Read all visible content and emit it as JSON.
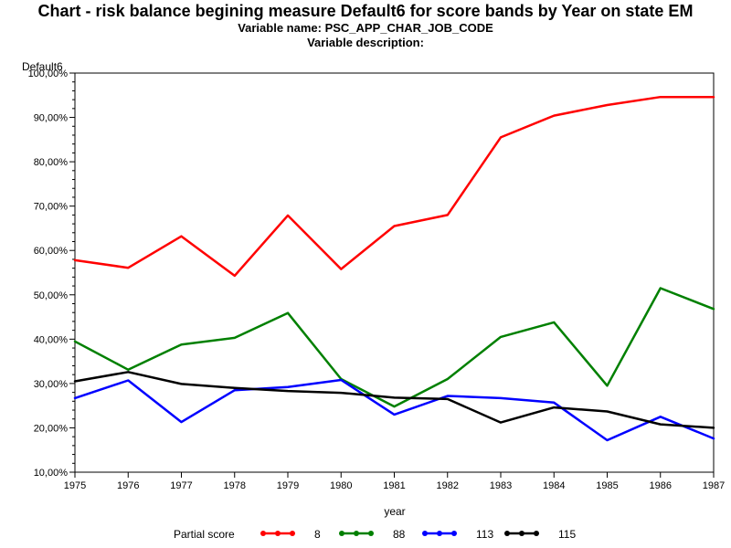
{
  "header": {
    "title": "Chart - risk balance begining measure Default6 for score bands by Year on state EM",
    "variable_name": "Variable name: PSC_APP_CHAR_JOB_CODE",
    "variable_description": "Variable description:"
  },
  "chart_data": {
    "type": "line",
    "title": "Chart - risk balance begining measure Default6 for score bands by Year on state EM",
    "xlabel": "year",
    "ylabel": "Default6",
    "x": [
      1975,
      1976,
      1977,
      1978,
      1979,
      1980,
      1981,
      1982,
      1983,
      1984,
      1985,
      1986,
      1987
    ],
    "xlim": [
      1975,
      1987
    ],
    "ylim": [
      10,
      100
    ],
    "yticks": [
      10,
      20,
      30,
      40,
      50,
      60,
      70,
      80,
      90,
      100
    ],
    "ytick_labels": [
      "10,00%",
      "20,00%",
      "30,00%",
      "40,00%",
      "50,00%",
      "60,00%",
      "70,00%",
      "80,00%",
      "90,00%",
      "100,00%"
    ],
    "grid": false,
    "legend_title": "Partial score",
    "legend_position": "bottom",
    "series": [
      {
        "name": "8",
        "color": "#ff0000",
        "values": [
          57.8,
          56.1,
          63.2,
          54.3,
          67.9,
          55.8,
          65.5,
          68.0,
          85.5,
          90.4,
          92.8,
          94.6,
          94.6
        ]
      },
      {
        "name": "88",
        "color": "#008000",
        "values": [
          39.5,
          33.1,
          38.8,
          40.3,
          45.9,
          31.0,
          24.8,
          31.0,
          40.5,
          43.8,
          29.5,
          51.5,
          46.8
        ]
      },
      {
        "name": "113",
        "color": "#0000ff",
        "values": [
          26.7,
          30.7,
          21.3,
          28.5,
          29.2,
          30.8,
          23.0,
          27.2,
          26.7,
          25.7,
          17.2,
          22.5,
          17.6
        ]
      },
      {
        "name": "115",
        "color": "#000000",
        "values": [
          30.5,
          32.6,
          29.9,
          29.0,
          28.3,
          27.9,
          26.8,
          26.5,
          21.2,
          24.6,
          23.7,
          20.8,
          20.0
        ]
      }
    ]
  }
}
